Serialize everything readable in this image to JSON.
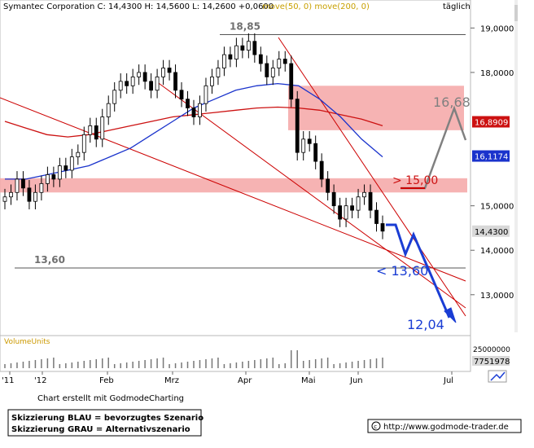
{
  "header": {
    "title_line": "Symantec Corporation C: 14,4300 H: 14,5600 L: 14,2600 +0,0600",
    "ma_label": "move(50, 0) move(200, 0)",
    "period": "täglich"
  },
  "footer": {
    "credit": "Chart erstellt mit GodmodeCharting",
    "legend_blue": "Skizzierung BLAU = bevorzugtes Szenario",
    "legend_grey": "Skizzierung GRAU = Alternativszenario",
    "url": "http://www.godmode-trader.de"
  },
  "colors": {
    "candle_fill": "#ffffff",
    "candle_stroke": "#000000",
    "ma50": "#1a33cc",
    "ma200": "#cc1111",
    "zone": "#f4a6a6",
    "trend_line": "#cc0000",
    "blue_scenario": "#1a3dd4",
    "grey_scenario": "#808080",
    "label_grey": "#707070",
    "volume_label": "#cc9900"
  },
  "chart_data": [
    {
      "type": "candlestick",
      "title": "Symantec Corporation",
      "ylim": [
        12.3,
        19.3
      ],
      "x_tick_labels": [
        "'11",
        "'12",
        "Feb",
        "Mrz",
        "Apr",
        "Mai",
        "Jun",
        "Jul"
      ],
      "y_tick_labels": [
        "19,0000",
        "18,0000",
        "15,0000",
        "14,0000",
        "13,0000"
      ],
      "price_badges": [
        {
          "value": 16.89,
          "text": "16,8909",
          "color": "#cc1111"
        },
        {
          "value": 16.12,
          "text": "16,1174",
          "color": "#1a33cc"
        },
        {
          "value": 14.43,
          "text": "14,4300",
          "color": "#d8d8d8"
        }
      ],
      "horizontal_levels": [
        {
          "value": 18.85,
          "label": "18,85"
        },
        {
          "value": 13.6,
          "label": "13,60"
        }
      ],
      "resistance_zones": [
        {
          "from": 16.7,
          "to": 17.7
        },
        {
          "from": 15.3,
          "to": 15.62
        }
      ],
      "scenario_labels": [
        {
          "text": "16,68",
          "color": "#808080"
        },
        {
          "text": "> 15,00",
          "color": "#cc1111"
        },
        {
          "text": "< 13,60",
          "color": "#1a3dd4"
        },
        {
          "text": "12,04",
          "color": "#1a3dd4"
        }
      ],
      "ohlc_close": [
        15.2,
        15.3,
        15.6,
        15.4,
        15.1,
        15.3,
        15.5,
        15.7,
        15.6,
        15.9,
        15.8,
        16.1,
        16.2,
        16.6,
        16.8,
        16.5,
        17.0,
        17.3,
        17.6,
        17.8,
        17.7,
        17.9,
        18.0,
        17.8,
        17.6,
        17.9,
        18.1,
        18.0,
        17.6,
        17.4,
        17.2,
        17.0,
        17.3,
        17.7,
        17.9,
        18.1,
        18.4,
        18.3,
        18.6,
        18.5,
        18.7,
        18.4,
        18.2,
        17.9,
        18.1,
        18.3,
        18.2,
        17.4,
        16.2,
        16.5,
        16.4,
        16.0,
        15.6,
        15.3,
        15.0,
        14.7,
        15.0,
        14.9,
        15.2,
        15.3,
        14.9,
        14.6,
        14.43
      ],
      "ma50": [
        15.6,
        15.6,
        15.7,
        15.8,
        15.9,
        16.1,
        16.3,
        16.6,
        16.9,
        17.2,
        17.4,
        17.6,
        17.7,
        17.75,
        17.7,
        17.4,
        17.0,
        16.5,
        16.1
      ],
      "ma200": [
        16.9,
        16.75,
        16.6,
        16.55,
        16.6,
        16.7,
        16.8,
        16.9,
        17.0,
        17.05,
        17.1,
        17.15,
        17.2,
        17.22,
        17.2,
        17.15,
        17.05,
        16.95,
        16.8
      ],
      "volume": {
        "label": "VolumeUnits",
        "tick_labels": [
          "25000000"
        ],
        "badge": "7751978"
      }
    }
  ]
}
